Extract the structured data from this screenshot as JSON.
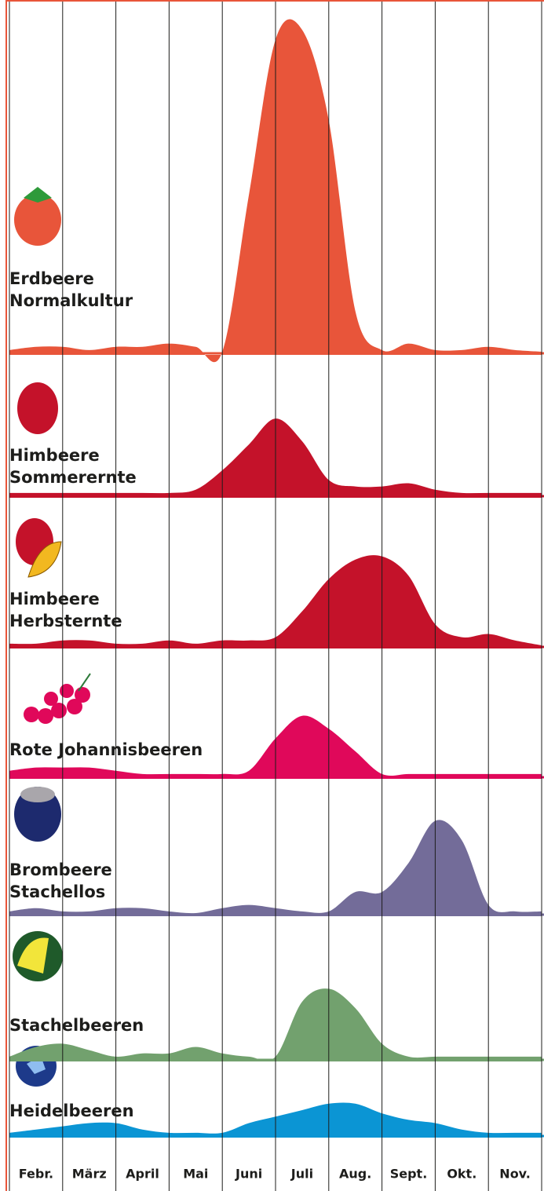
{
  "chart_data": {
    "type": "area",
    "categories": [
      "Febr.",
      "März",
      "April",
      "Mai",
      "Juni",
      "Juli",
      "Aug.",
      "Sept.",
      "Okt.",
      "Nov."
    ],
    "x": [
      0,
      0.5,
      1,
      1.5,
      2,
      2.5,
      3,
      3.5,
      4,
      4.5,
      5,
      5.5,
      6,
      6.5,
      7,
      7.5,
      8,
      8.5,
      9,
      9.5,
      10
    ],
    "xlim": [
      0,
      10
    ],
    "ylim": [
      0,
      100
    ],
    "series": [
      {
        "name": "Erdbeere\nNormalkultur",
        "color": "#e8553a",
        "values": [
          1,
          2,
          2,
          1,
          2,
          2,
          3,
          2,
          0,
          49,
          97,
          100,
          72,
          13,
          1,
          3,
          1,
          1,
          2,
          1,
          0
        ]
      },
      {
        "name": "Himbeere\nSommerernte",
        "color": "#c4122a",
        "values": [
          1,
          1,
          1,
          1,
          1,
          1,
          1,
          2,
          8,
          16,
          24,
          17,
          5,
          3,
          3,
          4,
          2,
          1,
          1,
          1,
          1
        ]
      },
      {
        "name": "Himbeere\nHerbsternte",
        "color": "#c4122a",
        "values": [
          1,
          1,
          2,
          2,
          1,
          1,
          2,
          1,
          2,
          2,
          3,
          11,
          21,
          27,
          28,
          22,
          7,
          3,
          4,
          2,
          0
        ]
      },
      {
        "name": "Rote Johannisbeeren",
        "color": "#e0085a",
        "values": [
          2,
          3,
          3,
          3,
          2,
          1,
          1,
          1,
          1,
          2,
          12,
          19,
          15,
          8,
          1,
          1,
          1,
          1,
          1,
          1,
          1
        ]
      },
      {
        "name": "Brombeere\nStachellos",
        "color": "#736c99",
        "values": [
          1,
          2,
          1,
          1,
          2,
          2,
          1,
          0,
          2,
          3,
          2,
          1,
          1,
          7,
          7,
          16,
          29,
          23,
          3,
          1,
          1
        ]
      },
      {
        "name": "Stachelbeeren",
        "color": "#72a16e",
        "values": [
          1,
          4,
          5,
          3,
          1,
          2,
          2,
          4,
          2,
          1,
          1,
          18,
          22,
          16,
          5,
          1,
          1,
          1,
          1,
          1,
          1
        ]
      },
      {
        "name": "Heidelbeeren",
        "color": "#0b95d4",
        "values": [
          1,
          2,
          3,
          4,
          4,
          2,
          1,
          1,
          1,
          4,
          6,
          8,
          10,
          10,
          7,
          5,
          4,
          2,
          1,
          1,
          1
        ]
      }
    ]
  }
}
